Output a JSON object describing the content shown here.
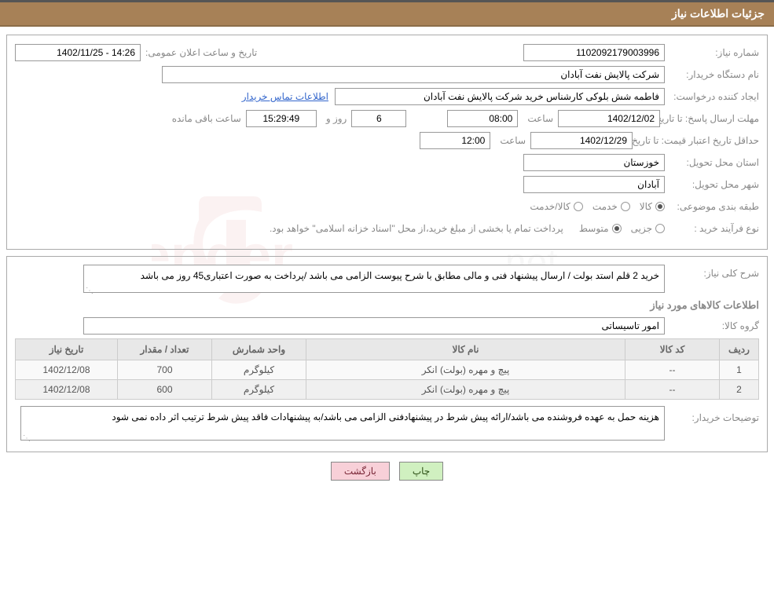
{
  "header": {
    "title": "جزئیات اطلاعات نیاز"
  },
  "fields": {
    "need_number_label": "شماره نیاز:",
    "need_number": "1102092179003996",
    "announce_label": "تاریخ و ساعت اعلان عمومی:",
    "announce_value": "14:26 - 1402/11/25",
    "buyer_org_label": "نام دستگاه خریدار:",
    "buyer_org": "شرکت پالایش نفت آبادان",
    "requester_label": "ایجاد کننده درخواست:",
    "requester": "فاطمه شش بلوکی کارشناس خرید شرکت پالایش نفت آبادان",
    "contact_link": "اطلاعات تماس خریدار",
    "reply_deadline_label": "مهلت ارسال پاسخ: تا تاریخ:",
    "reply_date": "1402/12/02",
    "time_label": "ساعت",
    "reply_time": "08:00",
    "days_remaining": "6",
    "days_label": "روز و",
    "countdown": "15:29:49",
    "remaining_label": "ساعت باقی مانده",
    "price_validity_label": "حداقل تاریخ اعتبار قیمت: تا تاریخ:",
    "price_date": "1402/12/29",
    "price_time": "12:00",
    "province_label": "استان محل تحویل:",
    "province": "خوزستان",
    "city_label": "شهر محل تحویل:",
    "city": "آبادان",
    "category_label": "طبقه بندی موضوعی:",
    "cat_goods": "کالا",
    "cat_service": "خدمت",
    "cat_goods_service": "کالا/خدمت",
    "purchase_type_label": "نوع فرآیند خرید :",
    "pt_partial": "جزیی",
    "pt_medium": "متوسط",
    "payment_note": "پرداخت تمام یا بخشی از مبلغ خرید،از محل \"اسناد خزانه اسلامی\" خواهد بود.",
    "general_desc_label": "شرح کلی نیاز:",
    "general_desc": "خرید 2 قلم استد بولت / ارسال پیشنهاد فنی و مالی مطابق با شرح پیوست الزامی می باشد /پرداخت به صورت اعتباری45 روز می باشد",
    "items_title": "اطلاعات کالاهای مورد نیاز",
    "group_label": "گروه کالا:",
    "group": "امور تاسیساتی",
    "buyer_notes_label": "توضیحات خریدار:",
    "buyer_notes": "هزینه حمل به عهده فروشنده می باشد/ارائه پیش شرط در پیشنهادفنی الزامی می باشد/به پیشنهادات فاقد پیش شرط ترتیب اثر داده نمی شود"
  },
  "table": {
    "columns": [
      "ردیف",
      "کد کالا",
      "نام کالا",
      "واحد شمارش",
      "تعداد / مقدار",
      "تاریخ نیاز"
    ],
    "rows": [
      [
        "1",
        "--",
        "پیچ و مهره (بولت) انکر",
        "کیلوگرم",
        "700",
        "1402/12/08"
      ],
      [
        "2",
        "--",
        "پیچ و مهره (بولت) انکر",
        "کیلوگرم",
        "600",
        "1402/12/08"
      ]
    ],
    "col_widths": [
      "50px",
      "120px",
      "auto",
      "120px",
      "120px",
      "130px"
    ]
  },
  "buttons": {
    "print": "چاپ",
    "back": "بازگشت"
  },
  "colors": {
    "header_bg": "#a78157",
    "header_text": "#ffffff",
    "border": "#aaaaaa",
    "label": "#888888",
    "link": "#3366cc",
    "table_header_bg": "#e8e8e8",
    "btn_green": "#d0f0c0",
    "btn_pink": "#f8d0d8"
  }
}
